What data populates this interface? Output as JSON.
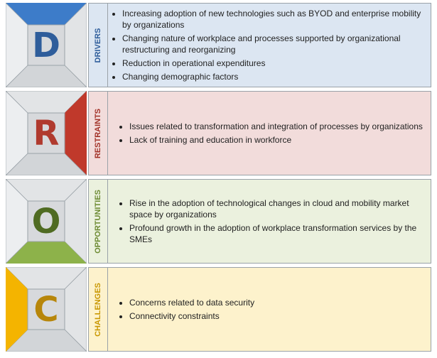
{
  "rows": [
    {
      "letter": "D",
      "label": "DRIVERS",
      "colors": {
        "accent": "#3d7cc9",
        "letter": "#2e5d9b",
        "panel_bg": "#dce6f2",
        "label": "#2e5d9b"
      },
      "items": [
        "Increasing adoption of new technologies such as BYOD and enterprise mobility by organizations",
        "Changing nature of workplace and processes supported by organizational restructuring and reorganizing",
        "Reduction in operational expenditures",
        "Changing demographic factors"
      ]
    },
    {
      "letter": "R",
      "label": "RESTRAINTS",
      "colors": {
        "accent": "#c0392b",
        "letter": "#b03a2e",
        "panel_bg": "#f2dcdb",
        "label": "#a23127"
      },
      "items": [
        "Issues related to transformation and integration of processes by organizations",
        "Lack of training and education in workforce"
      ]
    },
    {
      "letter": "O",
      "label": "OPPORTUNITIES",
      "colors": {
        "accent": "#8db24a",
        "letter": "#4f6b22",
        "panel_bg": "#ebf1de",
        "label": "#6d8b33"
      },
      "items": [
        "Rise in the adoption of technological changes in cloud and mobility market space by organizations",
        "Profound growth in the adoption of workplace transformation services by the SMEs"
      ]
    },
    {
      "letter": "C",
      "label": "CHALLENGES",
      "colors": {
        "accent": "#f4b400",
        "letter": "#b7860b",
        "panel_bg": "#fdf2cc",
        "label": "#c99700"
      },
      "items": [
        "Concerns related to data security",
        "Connectivity constraints"
      ]
    }
  ]
}
